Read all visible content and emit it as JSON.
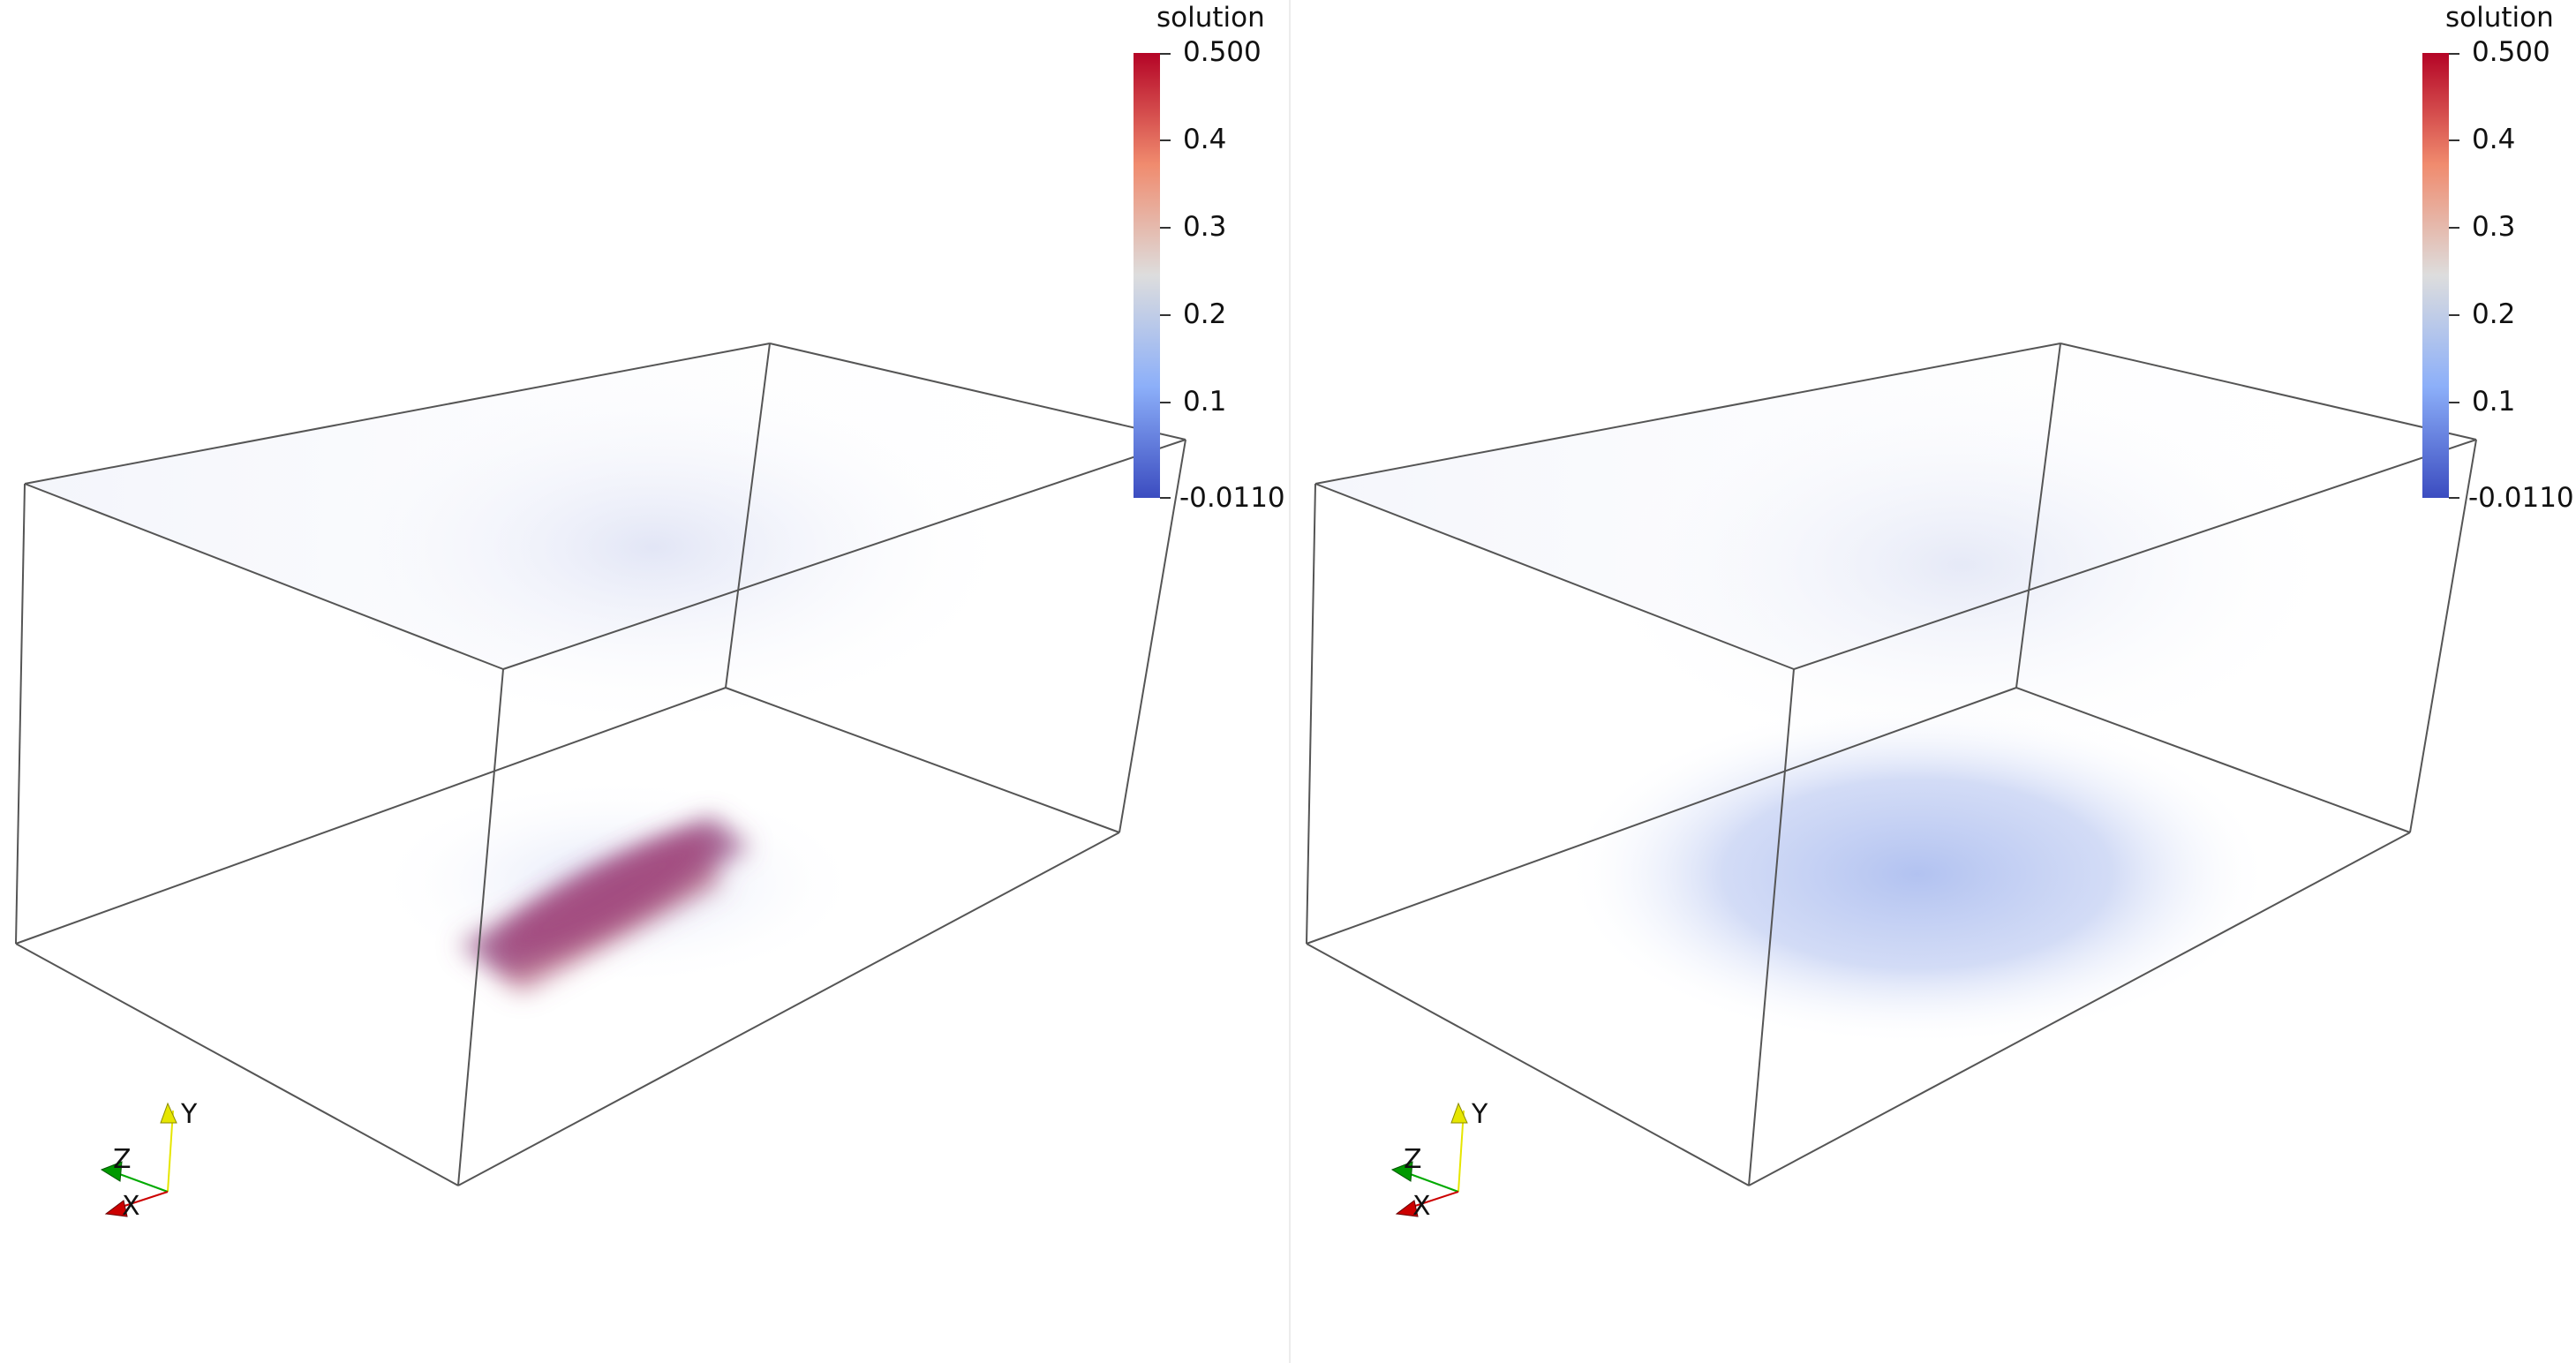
{
  "views": [
    {
      "name": "left",
      "colorbar": {
        "title": "solution",
        "labels": [
          "0.500",
          "0.4",
          "0.3",
          "0.2",
          "0.1",
          "-0.0110"
        ]
      },
      "axes": {
        "x": "X",
        "y": "Y",
        "z": "Z"
      }
    },
    {
      "name": "right",
      "colorbar": {
        "title": "solution",
        "labels": [
          "0.500",
          "0.4",
          "0.3",
          "0.2",
          "0.1",
          "-0.0110"
        ]
      },
      "axes": {
        "x": "X",
        "y": "Y",
        "z": "Z"
      }
    }
  ],
  "colormap": {
    "top": "#b40426",
    "upper": "#f08b6e",
    "middle": "#dddddd",
    "lower": "#8caff9",
    "bottom": "#3b4cc0"
  },
  "axis_colors": {
    "x": "#cc0000",
    "y": "#e6e600",
    "z": "#009900"
  }
}
